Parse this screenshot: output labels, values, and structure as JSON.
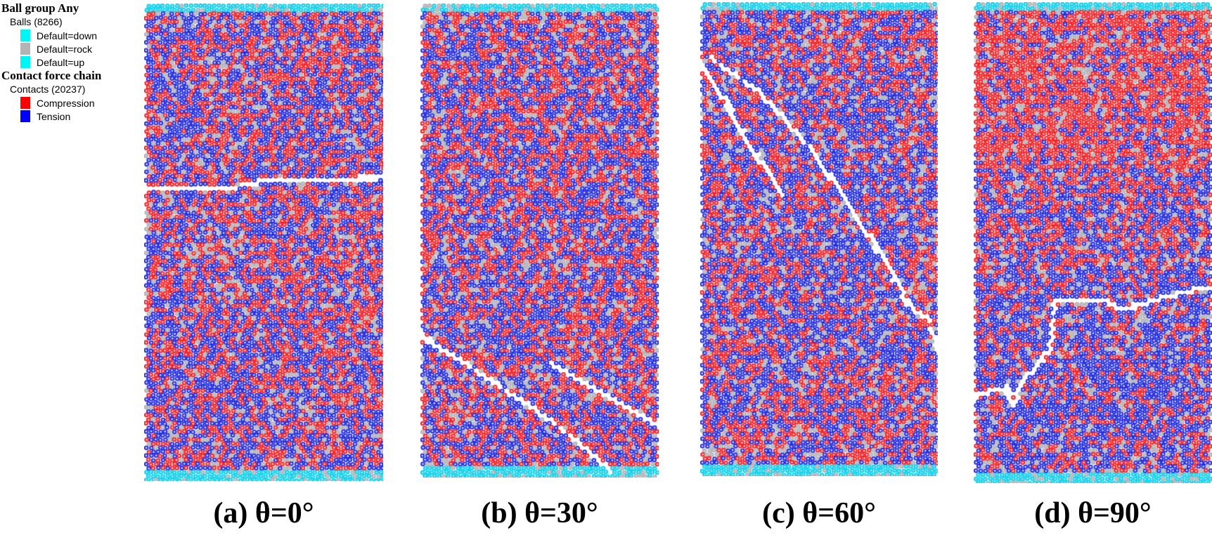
{
  "legend": {
    "ball_group_title": "Ball group Any",
    "balls_label": "Balls (8266)",
    "ball_groups": [
      {
        "label": "Default=down",
        "color": "#00f5f5"
      },
      {
        "label": "Default=rock",
        "color": "#b4b4b4"
      },
      {
        "label": "Default=up",
        "color": "#00f5f5"
      }
    ],
    "contact_title": "Contact force chain",
    "contacts_label": "Contacts (20237)",
    "contact_types": [
      {
        "label": "Compression",
        "color": "#ff0000"
      },
      {
        "label": "Tension",
        "color": "#0000ff"
      }
    ]
  },
  "panels": [
    {
      "caption": "(a) θ=0°",
      "joint_angle_deg": 0
    },
    {
      "caption": "(b) θ=30°",
      "joint_angle_deg": 30
    },
    {
      "caption": "(c) θ=60°",
      "joint_angle_deg": 60
    },
    {
      "caption": "(d) θ=90°",
      "joint_angle_deg": 90
    }
  ],
  "colors": {
    "compression": "#ff1a1a",
    "tension": "#1e28e6",
    "rock": "#b4b4b4",
    "platen": "#00d8f0",
    "crack": "#ffffff"
  }
}
